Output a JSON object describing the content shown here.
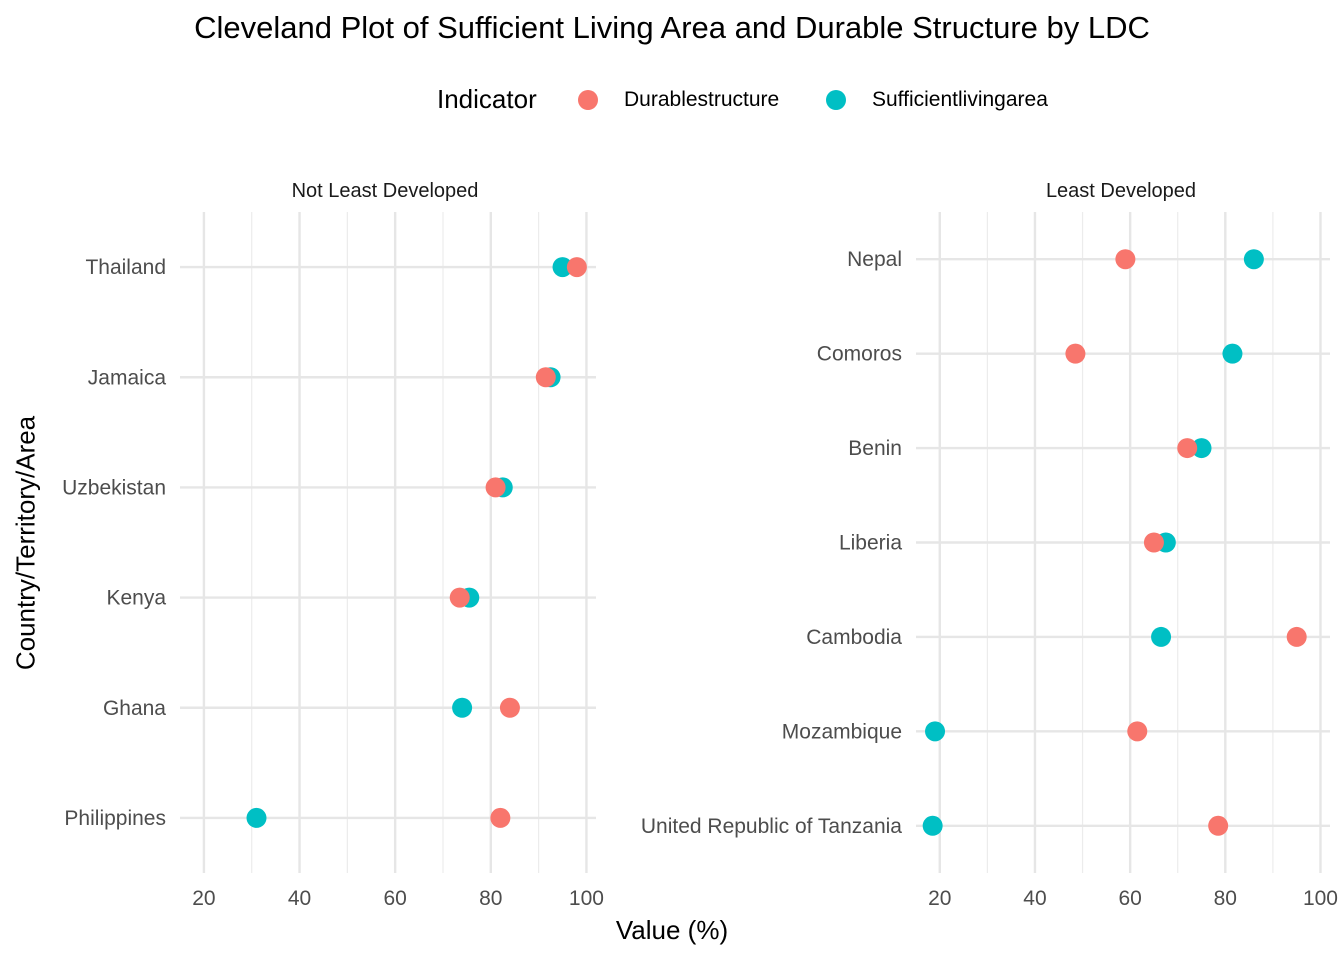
{
  "title": "Cleveland Plot of Sufficient Living Area and Durable Structure by LDC",
  "legend": {
    "title": "Indicator",
    "items": [
      {
        "label": "Durablestructure",
        "color": "#F8766D"
      },
      {
        "label": "Sufficientlivingarea",
        "color": "#00BFC4"
      }
    ]
  },
  "axis": {
    "xlabel": "Value (%)",
    "ylabel": "Country/Territory/Area"
  },
  "chart_data": [
    {
      "type": "scatter",
      "panel": "Not Least Developed",
      "xlim": [
        15,
        102
      ],
      "x_ticks": [
        20,
        40,
        60,
        80,
        100
      ],
      "grid": true,
      "categories": [
        "Thailand",
        "Jamaica",
        "Uzbekistan",
        "Kenya",
        "Ghana",
        "Philippines"
      ],
      "series": [
        {
          "name": "Durablestructure",
          "values": [
            98,
            91.5,
            81,
            73.5,
            84,
            82
          ]
        },
        {
          "name": "Sufficientlivingarea",
          "values": [
            95,
            92.5,
            82.5,
            75.5,
            74,
            31
          ]
        }
      ]
    },
    {
      "type": "scatter",
      "panel": "Least Developed",
      "xlim": [
        15,
        102
      ],
      "x_ticks": [
        20,
        40,
        60,
        80,
        100
      ],
      "grid": true,
      "categories": [
        "Nepal",
        "Comoros",
        "Benin",
        "Liberia",
        "Cambodia",
        "Mozambique",
        "United Republic of Tanzania"
      ],
      "series": [
        {
          "name": "Durablestructure",
          "values": [
            59,
            48.5,
            72,
            65,
            95,
            61.5,
            78.5
          ]
        },
        {
          "name": "Sufficientlivingarea",
          "values": [
            86,
            81.5,
            75,
            67.5,
            66.5,
            19,
            18.5
          ]
        }
      ]
    }
  ]
}
